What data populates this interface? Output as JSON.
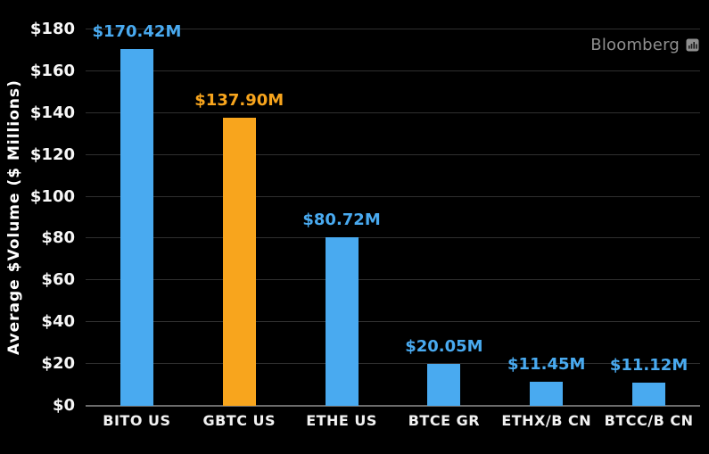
{
  "chart_data": {
    "type": "bar",
    "title": "",
    "ylabel": "Average $Volume ($ Millions)",
    "ylim": [
      0,
      180
    ],
    "ytick_step": 20,
    "grid": true,
    "legend": "none",
    "background_color": "#000000",
    "gridline_color": "#2f2f2f",
    "baseline_color": "#6b6b6b",
    "categories": [
      "BITO US",
      "GBTC US",
      "ETHE US",
      "BTCE GR",
      "ETHX/B CN",
      "BTCC/B CN"
    ],
    "values": [
      170.42,
      137.9,
      80.72,
      20.05,
      11.45,
      11.12
    ],
    "value_labels": [
      "$170.42M",
      "$137.90M",
      "$80.72M",
      "$20.05M",
      "$11.45M",
      "$11.12M"
    ],
    "bar_colors": [
      "#49AAF0",
      "#F8A51D",
      "#49AAF0",
      "#49AAF0",
      "#49AAF0",
      "#49AAF0"
    ],
    "yticks": [
      {
        "label": "$180",
        "value": 180
      },
      {
        "label": "$160",
        "value": 160
      },
      {
        "label": "$140",
        "value": 140
      },
      {
        "label": "$120",
        "value": 120
      },
      {
        "label": "$100",
        "value": 100
      },
      {
        "label": "$80",
        "value": 80
      },
      {
        "label": "$60",
        "value": 60
      },
      {
        "label": "$40",
        "value": 40
      },
      {
        "label": "$20",
        "value": 20
      },
      {
        "label": "$0",
        "value": 0
      }
    ]
  },
  "branding": {
    "source_label": "Bloomberg",
    "logo_color": "#8f8f8f"
  }
}
